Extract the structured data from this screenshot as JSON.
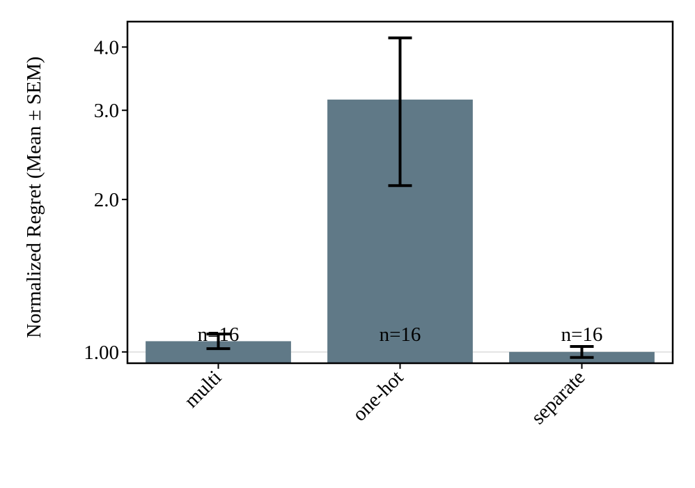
{
  "chart_data": {
    "type": "bar",
    "y_label": "Normalized Regret (Mean ± SEM)",
    "categories": [
      "multi",
      "one-hot",
      "separate"
    ],
    "values": [
      1.05,
      3.15,
      1.0
    ],
    "errors": [
      0.035,
      1.02,
      0.025
    ],
    "annotations": [
      "n=16",
      "n=16",
      "n=16"
    ],
    "color": "#607987",
    "log_y": true,
    "ylim": [
      0.95,
      4.49
    ],
    "yticks": [
      {
        "value": 1,
        "label": "1.00"
      },
      {
        "value": 2,
        "label": "2.0"
      },
      {
        "value": 3,
        "label": "3.0"
      },
      {
        "value": 4,
        "label": "4.0"
      }
    ],
    "reference_line": 1,
    "grid": false
  }
}
